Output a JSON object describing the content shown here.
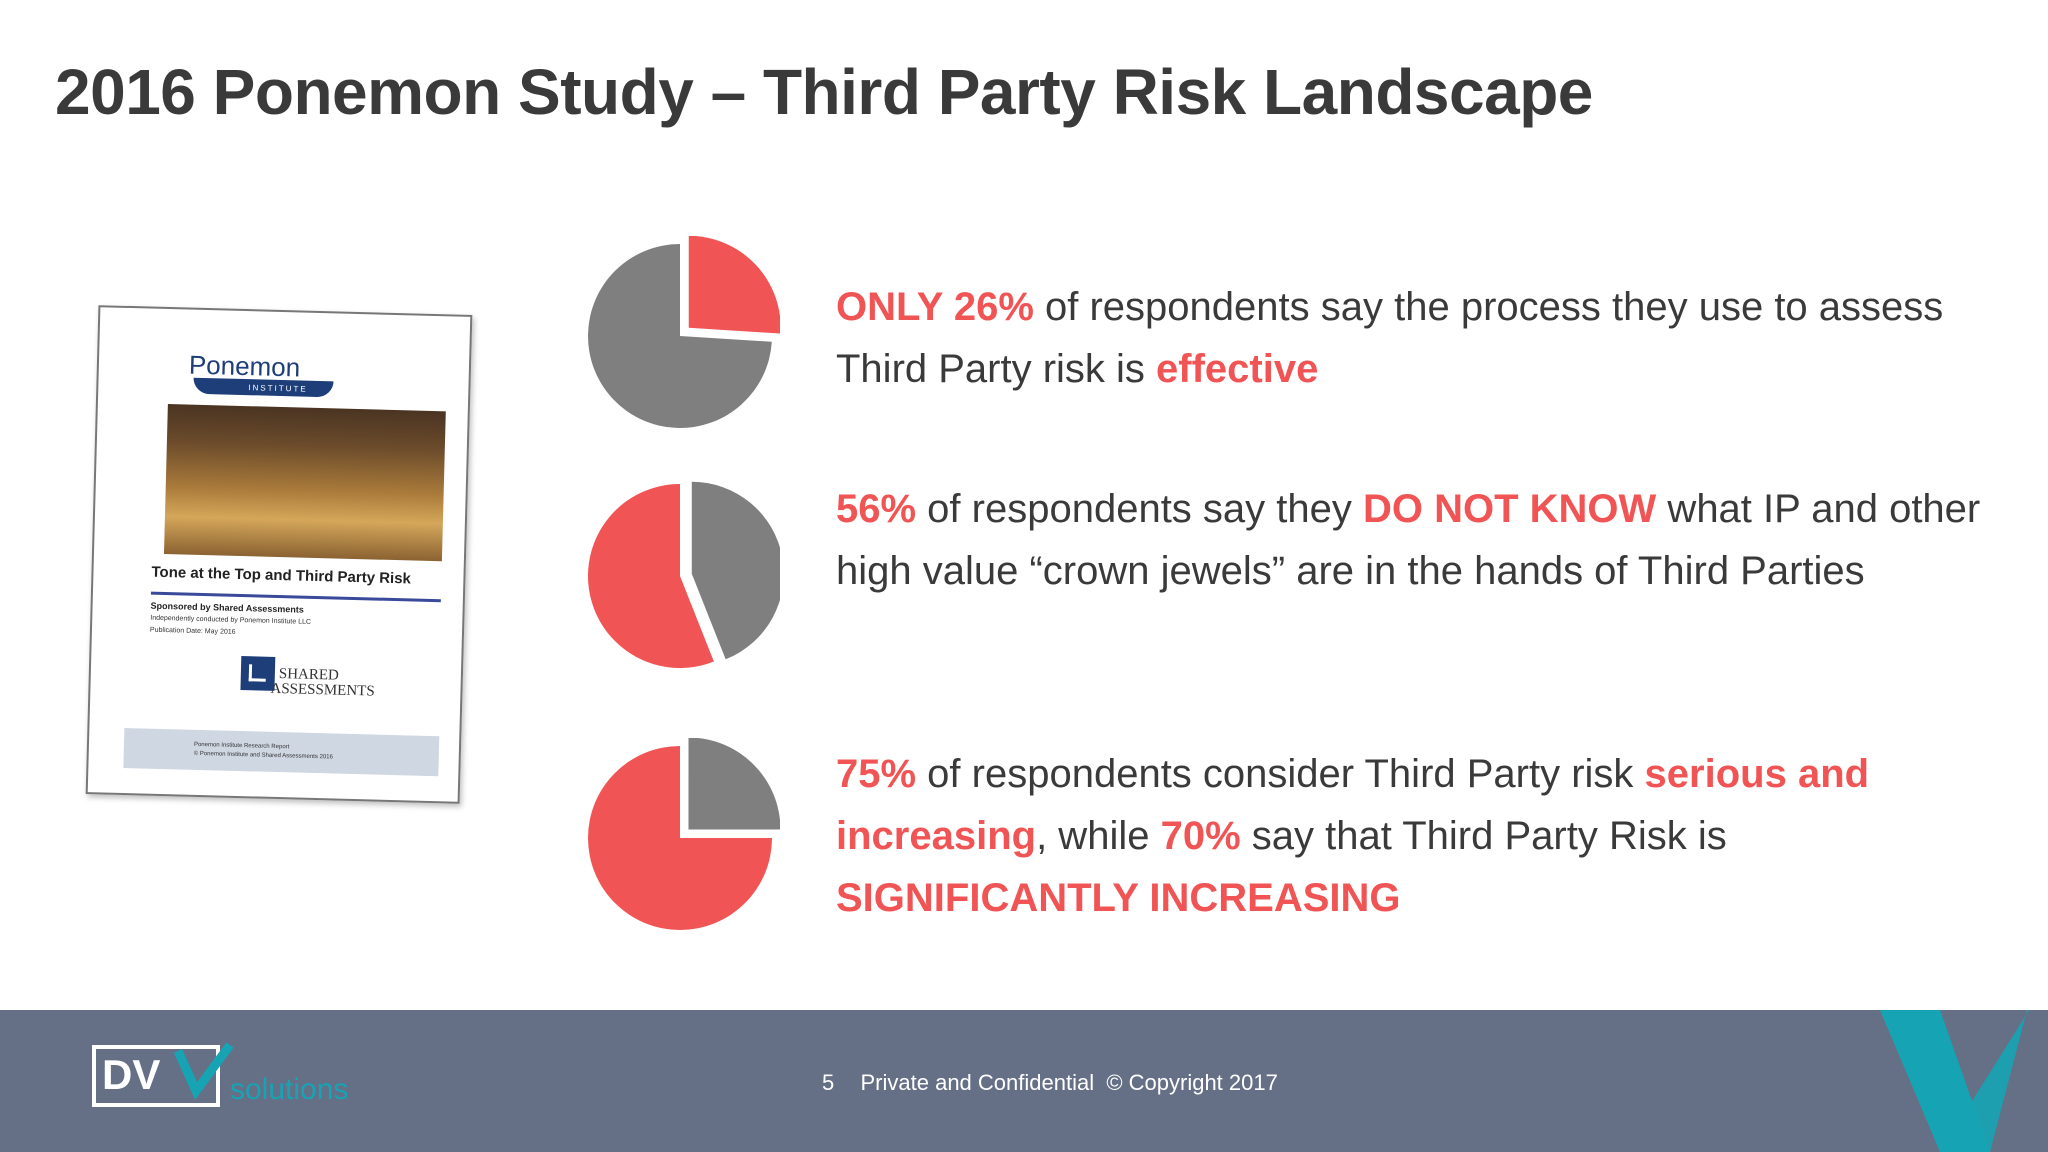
{
  "slide": {
    "title": "2016 Ponemon Study – Third Party Risk Landscape"
  },
  "report": {
    "logo_text": "Ponemon",
    "logo_sub": "INSTITUTE",
    "heading": "Tone at the Top and Third Party Risk",
    "sponsor": "Sponsored by Shared Assessments",
    "conducted": "Independently conducted by Ponemon Institute LLC",
    "publication": "Publication Date: May 2016",
    "sa_logo_line1": "SHARED",
    "sa_logo_line2": "ASSESSMENTS",
    "footer_line1": "Ponemon Institute Research Report",
    "footer_line2": "© Ponemon Institute and Shared Assessments 2016"
  },
  "statements": [
    {
      "parts": [
        {
          "text": "ONLY 26%",
          "highlight": true
        },
        {
          "text": " of respondents say the process they use to assess Third Party risk is ",
          "highlight": false
        },
        {
          "text": "effective",
          "highlight": true
        }
      ]
    },
    {
      "parts": [
        {
          "text": "56%",
          "highlight": true
        },
        {
          "text": " of respondents say they ",
          "highlight": false
        },
        {
          "text": "DO NOT KNOW",
          "highlight": true
        },
        {
          "text": " what IP and other high value “crown jewels” are in the hands of Third Parties",
          "highlight": false
        }
      ]
    },
    {
      "parts": [
        {
          "text": "75%",
          "highlight": true
        },
        {
          "text": " of respondents consider Third Party risk ",
          "highlight": false
        },
        {
          "text": "serious and increasing",
          "highlight": true
        },
        {
          "text": ", while ",
          "highlight": false
        },
        {
          "text": "70%",
          "highlight": true
        },
        {
          "text": " say that Third Party Risk is ",
          "highlight": false
        },
        {
          "text": "SIGNIFICANTLY INCREASING",
          "highlight": true
        }
      ]
    }
  ],
  "chart_data": [
    {
      "type": "pie",
      "values": [
        26,
        74
      ],
      "exploded": 0,
      "colors": [
        "#f05454",
        "#7f7f7f"
      ]
    },
    {
      "type": "pie",
      "values": [
        56,
        44
      ],
      "exploded": 1,
      "colors": [
        "#f05454",
        "#7f7f7f"
      ]
    },
    {
      "type": "pie",
      "values": [
        75,
        25
      ],
      "exploded": 1,
      "colors": [
        "#f05454",
        "#7f7f7f"
      ]
    }
  ],
  "footer": {
    "brand_main": "DV",
    "brand_sub": "solutions",
    "page_number": "5",
    "text": "Private and Confidential  © Copyright 2017"
  },
  "colors": {
    "accent": "#f05454",
    "neutral": "#7f7f7f",
    "footer_bg": "#656f86",
    "brand_teal": "#16a4b4"
  }
}
